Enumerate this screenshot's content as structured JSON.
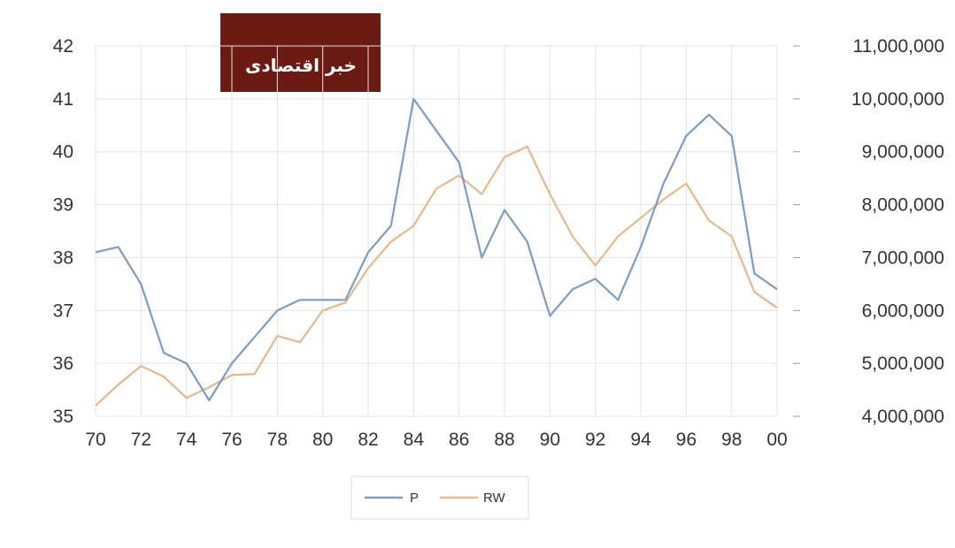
{
  "logo": {
    "text": "خبر اقتصادی",
    "background": "#6b1b12",
    "accent": "#e8402a"
  },
  "chart_data": {
    "type": "line",
    "x": [
      70,
      71,
      72,
      73,
      74,
      75,
      76,
      77,
      78,
      79,
      80,
      81,
      82,
      83,
      84,
      85,
      86,
      87,
      88,
      89,
      90,
      91,
      92,
      93,
      94,
      95,
      96,
      97,
      98,
      99,
      100
    ],
    "x_tick_labels": [
      "70",
      "72",
      "74",
      "76",
      "78",
      "80",
      "82",
      "84",
      "86",
      "88",
      "90",
      "92",
      "94",
      "96",
      "98",
      "00"
    ],
    "y_left": {
      "ylim": [
        35,
        42
      ],
      "ticks": [
        "35",
        "36",
        "37",
        "38",
        "39",
        "40",
        "41",
        "42"
      ]
    },
    "y_right": {
      "ylim": [
        4000000,
        11000000
      ],
      "ticks": [
        "4,000,000",
        "5,000,000",
        "6,000,000",
        "7,000,000",
        "8,000,000",
        "9,000,000",
        "10,000,000",
        "11,000,000"
      ]
    },
    "grid": true,
    "legend_position": "bottom-center",
    "series": [
      {
        "name": "P",
        "axis": "left",
        "color": "#7a9cc6",
        "values": [
          38.1,
          38.2,
          37.5,
          36.2,
          36.0,
          35.3,
          36.0,
          36.5,
          37.0,
          37.2,
          37.2,
          37.2,
          38.1,
          38.6,
          41.0,
          40.4,
          39.8,
          38.0,
          38.9,
          38.3,
          36.9,
          37.4,
          37.6,
          37.2,
          38.2,
          39.4,
          40.3,
          40.7,
          40.3,
          37.7,
          37.4
        ]
      },
      {
        "name": "RW",
        "axis": "right",
        "color": "#e6b88a",
        "values": [
          4200000,
          4600000,
          4950000,
          4750000,
          4350000,
          4550000,
          4780000,
          4800000,
          5520000,
          5400000,
          6000000,
          6150000,
          6800000,
          7300000,
          7600000,
          8300000,
          8550000,
          8200000,
          8900000,
          9100000,
          8200000,
          7400000,
          6850000,
          7400000,
          7750000,
          8100000,
          8400000,
          7700000,
          7400000,
          6350000,
          6050000
        ]
      }
    ]
  }
}
